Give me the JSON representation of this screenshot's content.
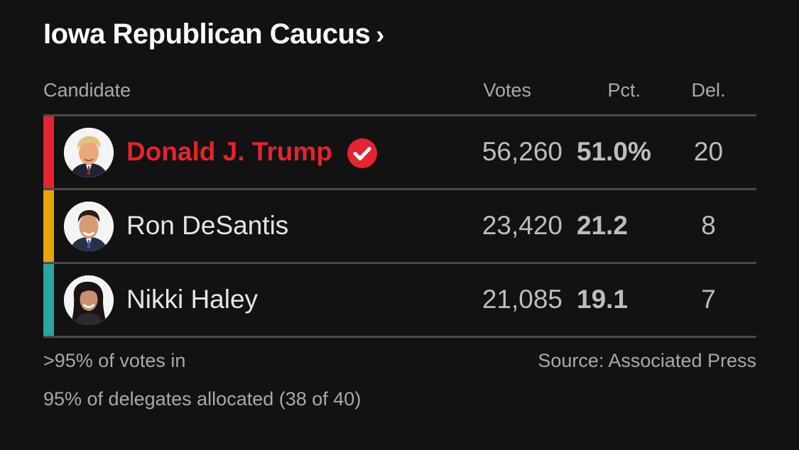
{
  "header": {
    "title": "Iowa Republican Caucus",
    "chevron": "›"
  },
  "columns": {
    "candidate": "Candidate",
    "votes": "Votes",
    "pct": "Pct.",
    "del": "Del."
  },
  "candidates": [
    {
      "name": "Donald J. Trump",
      "votes": "56,260",
      "pct": "51.0%",
      "del": "20",
      "winner": true,
      "bar_color": "#e4242f",
      "icon": "check-circle-icon"
    },
    {
      "name": "Ron DeSantis",
      "votes": "23,420",
      "pct": "21.2",
      "del": "8",
      "winner": false,
      "bar_color": "#e6a40f"
    },
    {
      "name": "Nikki Haley",
      "votes": "21,085",
      "pct": "19.1",
      "del": "7",
      "winner": false,
      "bar_color": "#2aa5a1"
    }
  ],
  "footer": {
    "votes_in": ">95% of votes in",
    "source": "Source: Associated Press",
    "delegates": "95% of delegates allocated (38 of 40)"
  },
  "colors": {
    "background": "#121212",
    "winner": "#e4242f",
    "rule": "#4a4a4a"
  }
}
